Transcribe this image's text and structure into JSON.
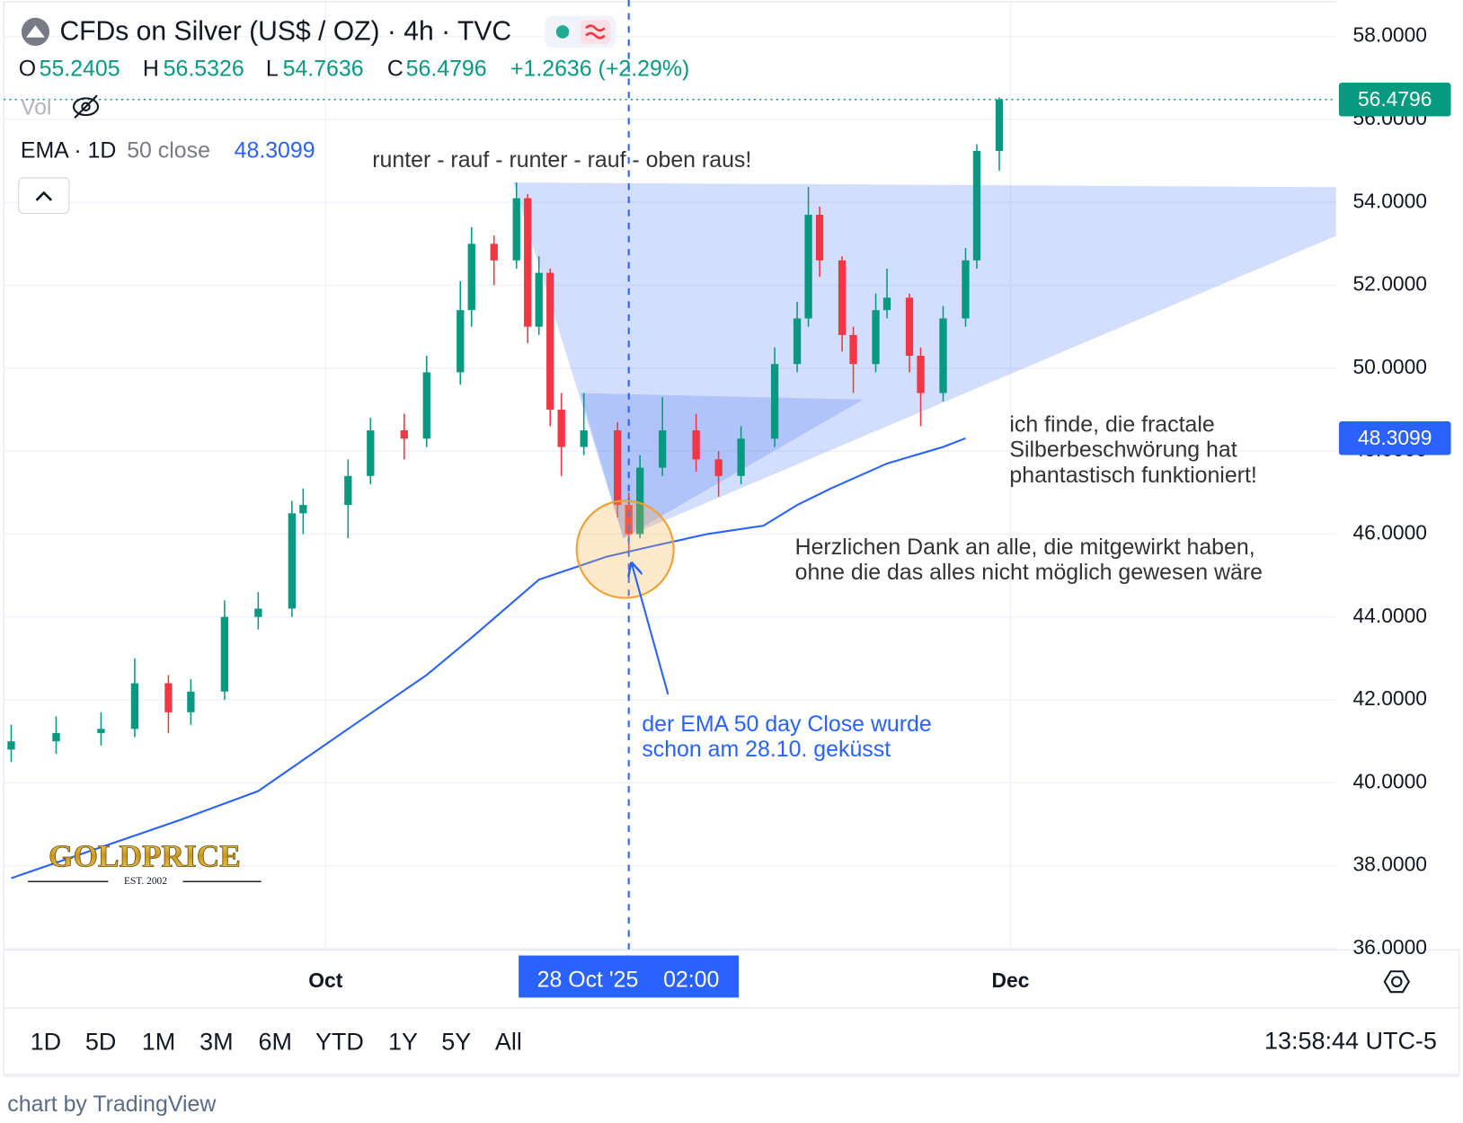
{
  "chart_data": {
    "type": "candlestick",
    "title": "CFDs on Silver (US$ / OZ) · 4h · TVC",
    "x": [
      "2025-09-03",
      "2025-09-07",
      "2025-09-11",
      "2025-09-14",
      "2025-09-17",
      "2025-09-19",
      "2025-09-22",
      "2025-09-25",
      "2025-09-28",
      "2025-09-29",
      "2025-10-03",
      "2025-10-05",
      "2025-10-08",
      "2025-10-10",
      "2025-10-13",
      "2025-10-14",
      "2025-10-16",
      "2025-10-18",
      "2025-10-19",
      "2025-10-20",
      "2025-10-21",
      "2025-10-22",
      "2025-10-24",
      "2025-10-27",
      "2025-10-28",
      "2025-10-29",
      "2025-10-31",
      "2025-11-03",
      "2025-11-05",
      "2025-11-07",
      "2025-11-10",
      "2025-11-12",
      "2025-11-13",
      "2025-11-14",
      "2025-11-16",
      "2025-11-17",
      "2025-11-19",
      "2025-11-20",
      "2025-11-22",
      "2025-11-23",
      "2025-11-25",
      "2025-11-27",
      "2025-11-28",
      "2025-11-30"
    ],
    "open": [
      40.8,
      41.0,
      41.2,
      41.3,
      42.4,
      41.7,
      42.2,
      44.0,
      44.2,
      46.5,
      46.7,
      47.4,
      48.5,
      48.3,
      49.9,
      51.4,
      53.0,
      52.6,
      54.1,
      51.0,
      52.3,
      49.0,
      48.1,
      48.5,
      46.7,
      46.0,
      47.6,
      48.5,
      47.8,
      47.4,
      48.3,
      50.1,
      51.2,
      53.7,
      52.6,
      50.8,
      50.1,
      51.4,
      51.7,
      50.3,
      49.4,
      51.2,
      52.6,
      55.2405
    ],
    "high": [
      41.4,
      41.6,
      41.7,
      43.0,
      42.6,
      42.5,
      44.4,
      44.6,
      46.8,
      47.1,
      47.8,
      48.8,
      48.9,
      50.3,
      52.1,
      53.4,
      53.2,
      54.48,
      54.2,
      52.7,
      52.4,
      49.4,
      49.4,
      48.7,
      47.0,
      47.9,
      49.3,
      48.9,
      48.0,
      48.6,
      50.5,
      51.6,
      54.37,
      53.9,
      52.7,
      51.0,
      51.8,
      52.4,
      51.8,
      50.5,
      51.5,
      52.9,
      55.4,
      56.5326
    ],
    "low": [
      40.5,
      40.7,
      40.9,
      41.1,
      41.2,
      41.4,
      42.0,
      43.7,
      44.0,
      46.0,
      45.9,
      47.2,
      47.8,
      48.1,
      49.6,
      51.0,
      52.0,
      52.4,
      50.6,
      50.8,
      48.6,
      47.4,
      47.9,
      46.4,
      45.56,
      45.9,
      47.4,
      47.5,
      46.9,
      47.2,
      48.1,
      49.9,
      51.0,
      52.2,
      50.4,
      49.4,
      49.9,
      51.2,
      49.9,
      48.6,
      49.2,
      51.0,
      52.4,
      54.7636
    ],
    "close": [
      41.0,
      41.2,
      41.3,
      42.4,
      41.7,
      42.2,
      44.0,
      44.2,
      46.5,
      46.7,
      47.4,
      48.5,
      48.3,
      49.9,
      51.4,
      53.0,
      52.6,
      54.1,
      51.0,
      52.3,
      49.0,
      48.1,
      48.5,
      46.7,
      46.0,
      47.6,
      48.5,
      47.8,
      47.4,
      48.3,
      50.1,
      51.2,
      53.7,
      52.6,
      50.8,
      50.1,
      51.4,
      51.7,
      50.3,
      49.4,
      51.2,
      52.6,
      55.2405,
      56.4796
    ],
    "up_color": "#089981",
    "down_color": "#f23645",
    "ohlc_letters": [
      "O",
      "H",
      "L",
      "C"
    ],
    "change": "+1.2636 (+2.29%)",
    "volume_label": "Vol",
    "ema": {
      "name": "EMA · 1D",
      "params": "50 close",
      "color": "#2962ff",
      "x": [
        "2025-09-03",
        "2025-09-18",
        "2025-09-25",
        "2025-10-03",
        "2025-10-10",
        "2025-10-14",
        "2025-10-20",
        "2025-10-26",
        "2025-10-30",
        "2025-11-04",
        "2025-11-09",
        "2025-11-12",
        "2025-11-15",
        "2025-11-20",
        "2025-11-25",
        "2025-11-27"
      ],
      "values": [
        37.7,
        39.1,
        39.8,
        41.3,
        42.6,
        43.5,
        44.9,
        45.45,
        45.7,
        46.0,
        46.2,
        46.7,
        47.1,
        47.7,
        48.1,
        48.3099
      ]
    },
    "ylim": [
      35.97,
      58.88
    ],
    "yticks": [
      {
        "value": 36,
        "label": "36.0000"
      },
      {
        "value": 38,
        "label": "38.0000"
      },
      {
        "value": 40,
        "label": "40.0000"
      },
      {
        "value": 42,
        "label": "42.0000"
      },
      {
        "value": 44,
        "label": "44.0000"
      },
      {
        "value": 46,
        "label": "46.0000"
      },
      {
        "value": 48,
        "label": "48.0000"
      },
      {
        "value": 50,
        "label": "50.0000"
      },
      {
        "value": 52,
        "label": "52.0000"
      },
      {
        "value": 54,
        "label": "54.0000"
      },
      {
        "value": 56,
        "label": "56.0000"
      },
      {
        "value": 58,
        "label": "58.0000"
      }
    ],
    "xlim": [
      "2025-09-02",
      "2025-12-30"
    ],
    "xticks": [
      {
        "value": "2025-10-01",
        "label": "Oct"
      },
      {
        "value": "2025-12-01",
        "label": "Dec"
      }
    ],
    "grid": true,
    "crosshair": {
      "x": "2025-10-28",
      "date": "28 Oct '25",
      "time": "02:00"
    },
    "annotations": {
      "pattern": "runter - rauf - runter - rauf - oben raus!",
      "fractal": [
        "ich finde, die fractale",
        "Silberbeschwörung hat",
        "phantastisch funktioniert!"
      ],
      "thanks": [
        "Herzlichen Dank an alle, die mitgewirkt haben,",
        "ohne die das alles nicht möglich gewesen wäre"
      ],
      "ema_kiss": [
        "der EMA 50 day Close wurde",
        "schon am 28.10. geküsst"
      ]
    },
    "logo": {
      "name": "GOLDPRICE",
      "est": "EST. 2002"
    }
  },
  "toolbar": {
    "ranges": [
      "1D",
      "5D",
      "1M",
      "3M",
      "6M",
      "YTD",
      "1Y",
      "5Y",
      "All"
    ],
    "clock": "13:58:44 UTC-5"
  },
  "footer": "chart by TradingView"
}
